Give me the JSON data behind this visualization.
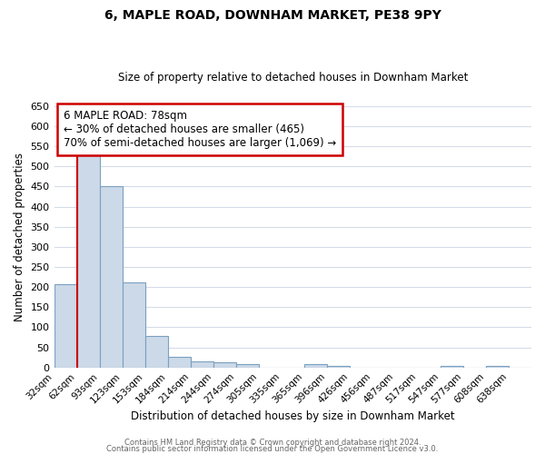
{
  "title": "6, MAPLE ROAD, DOWNHAM MARKET, PE38 9PY",
  "subtitle": "Size of property relative to detached houses in Downham Market",
  "xlabel": "Distribution of detached houses by size in Downham Market",
  "ylabel": "Number of detached properties",
  "footer_line1": "Contains HM Land Registry data © Crown copyright and database right 2024.",
  "footer_line2": "Contains public sector information licensed under the Open Government Licence v3.0.",
  "bin_labels": [
    "32sqm",
    "62sqm",
    "93sqm",
    "123sqm",
    "153sqm",
    "184sqm",
    "214sqm",
    "244sqm",
    "274sqm",
    "305sqm",
    "335sqm",
    "365sqm",
    "396sqm",
    "426sqm",
    "456sqm",
    "487sqm",
    "517sqm",
    "547sqm",
    "577sqm",
    "608sqm",
    "638sqm"
  ],
  "bar_values": [
    208,
    530,
    450,
    212,
    78,
    27,
    15,
    13,
    8,
    0,
    0,
    8,
    5,
    0,
    0,
    0,
    0,
    5,
    0,
    5,
    0
  ],
  "bar_color": "#ccd9e8",
  "bar_edge_color": "#7aa0c0",
  "ylim": [
    0,
    650
  ],
  "yticks": [
    0,
    50,
    100,
    150,
    200,
    250,
    300,
    350,
    400,
    450,
    500,
    550,
    600,
    650
  ],
  "vline_x": 1,
  "vline_color": "#cc0000",
  "annotation_title": "6 MAPLE ROAD: 78sqm",
  "annotation_line1": "← 30% of detached houses are smaller (465)",
  "annotation_line2": "70% of semi-detached houses are larger (1,069) →",
  "annotation_box_color": "#ffffff",
  "annotation_border_color": "#cc0000",
  "background_color": "#ffffff",
  "grid_color": "#d4dce8"
}
